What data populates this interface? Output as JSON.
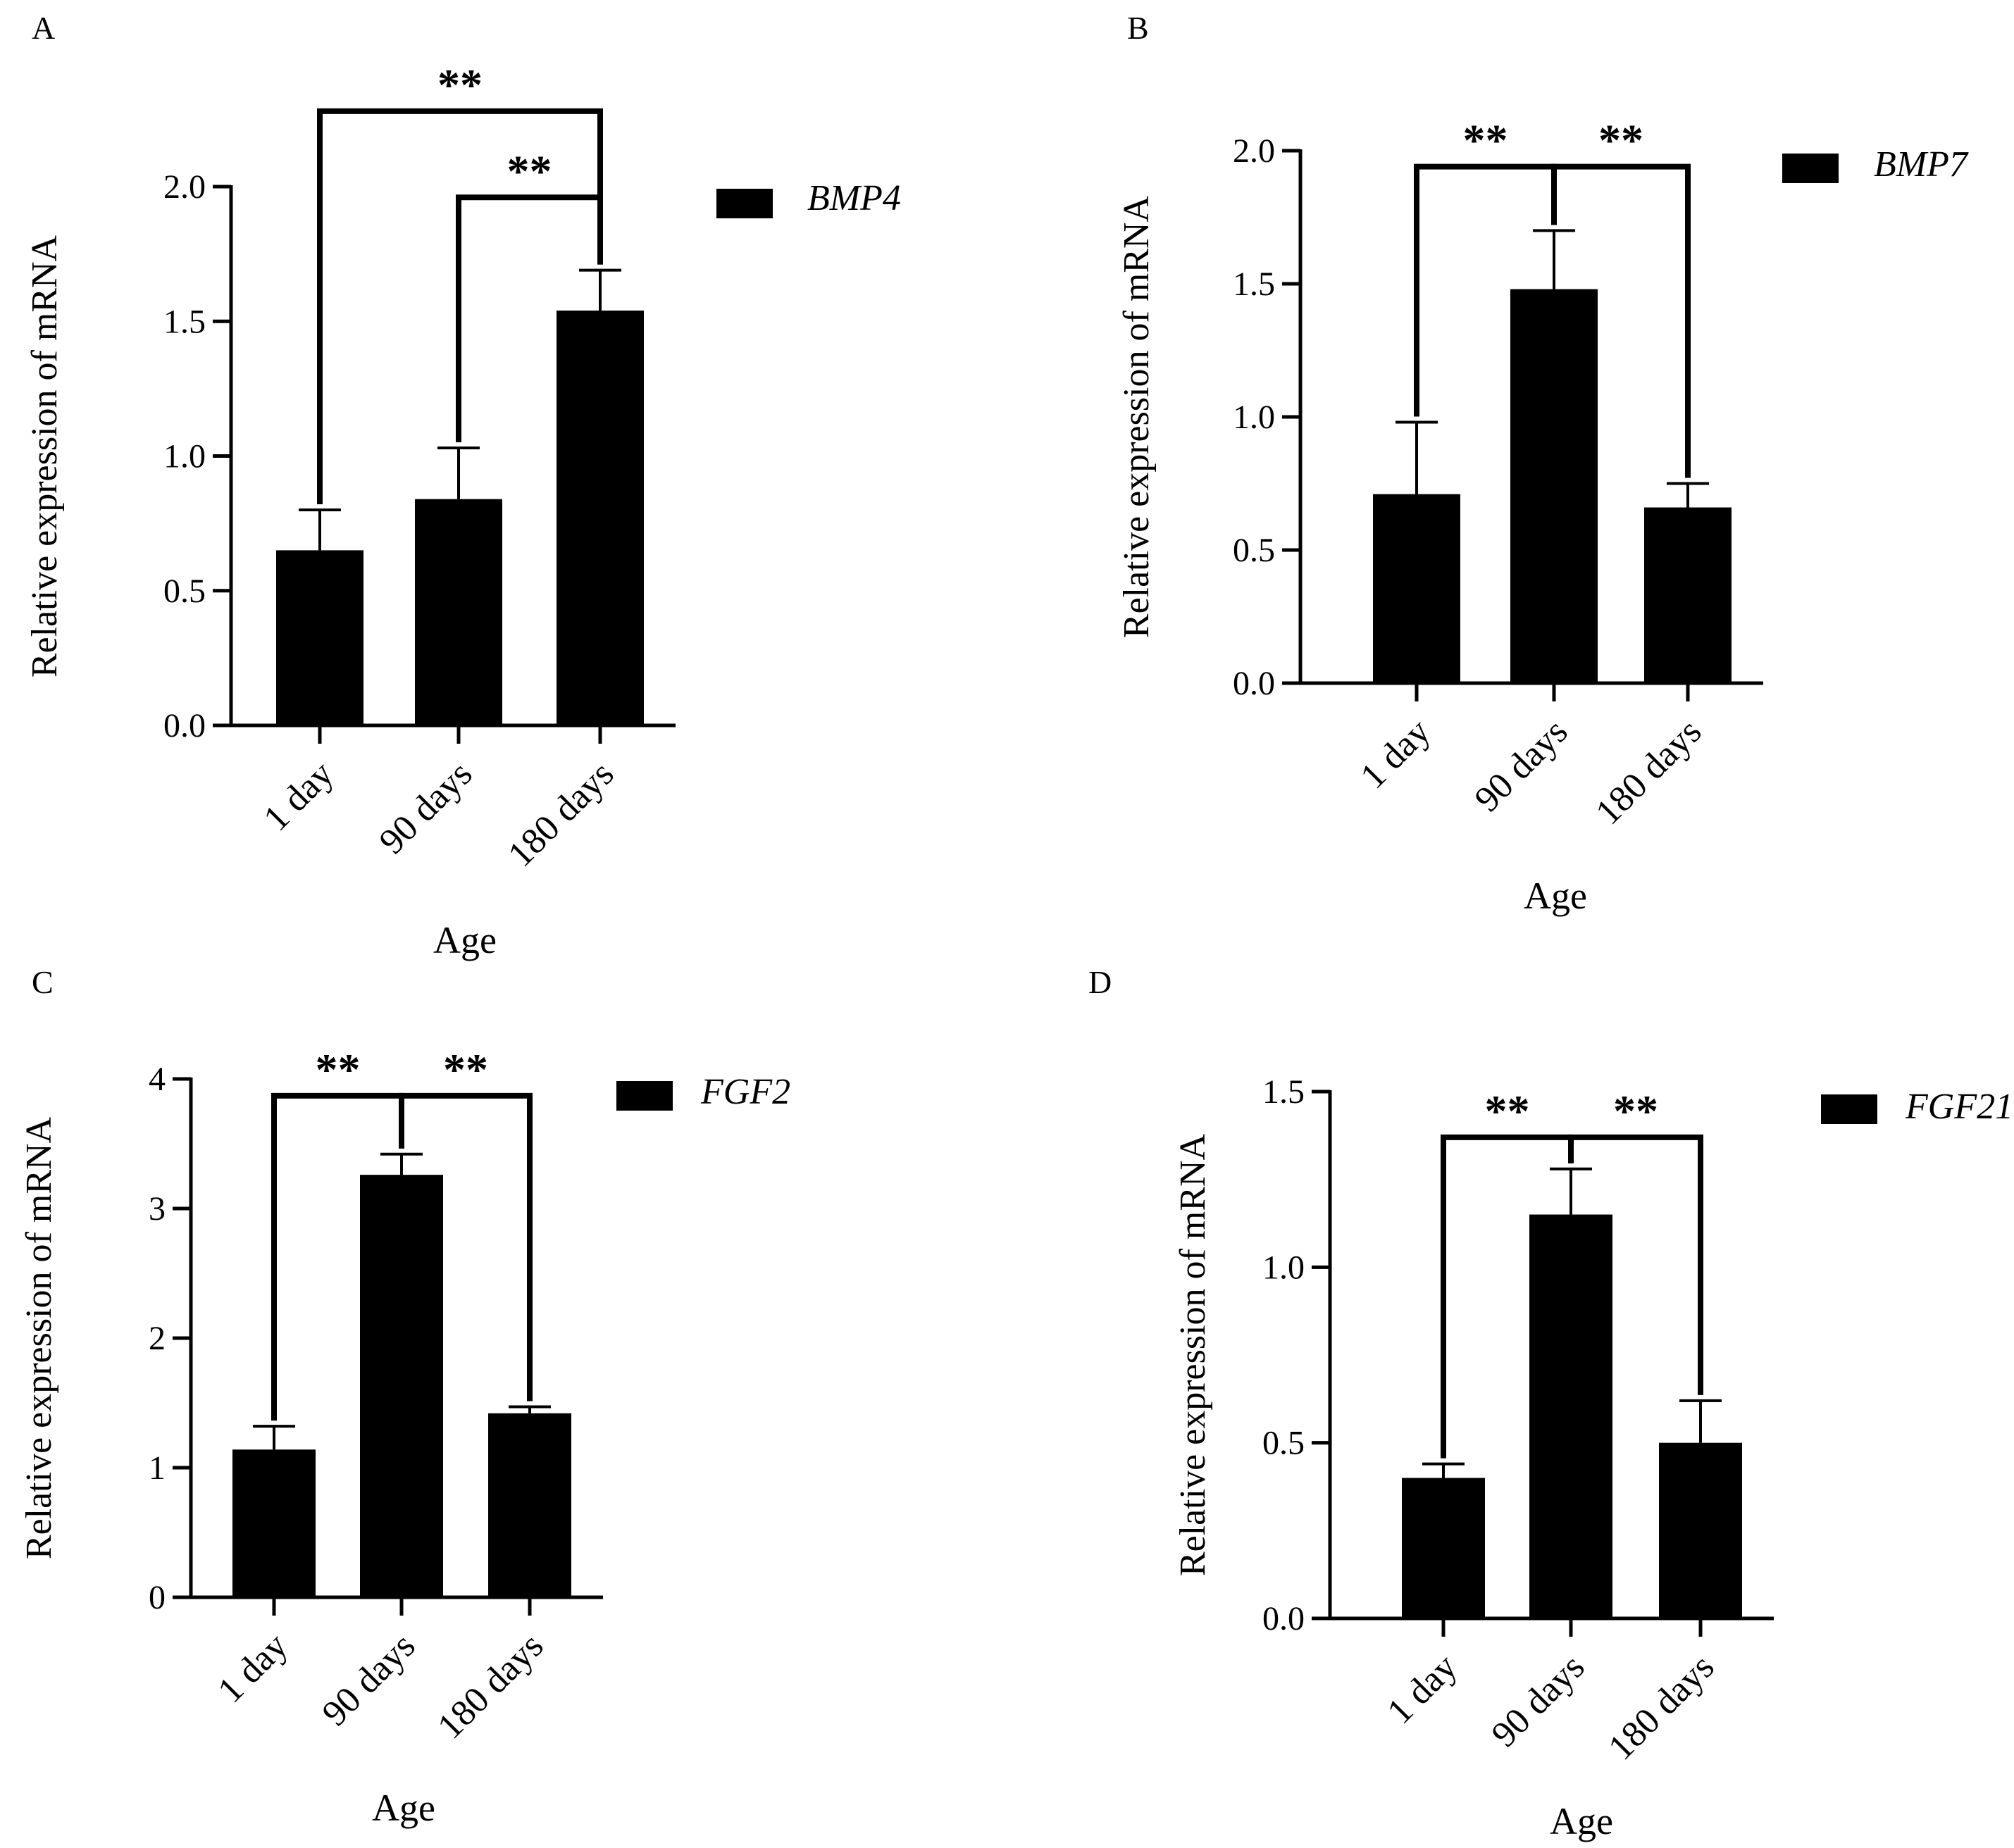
{
  "figure": {
    "panels": [
      {
        "id": "A",
        "panel_label": "A",
        "chart_data": {
          "type": "bar",
          "title": "",
          "xlabel": "Age",
          "ylabel": "Relative expression of mRNA",
          "categories": [
            "1 day",
            "90 days",
            "180 days"
          ],
          "series": [
            {
              "name": "BMP4",
              "values": [
                0.65,
                0.84,
                1.54
              ],
              "errors": [
                0.15,
                0.19,
                0.15
              ]
            }
          ],
          "ylim": [
            0,
            2.0
          ],
          "yticks": [
            0,
            0.5,
            1.0,
            1.5,
            2.0
          ],
          "ytick_labels": [
            "0.0",
            "0.5",
            "1.0",
            "1.5",
            "2.0"
          ],
          "legend": {
            "label": "BMP4",
            "placement": "top-right"
          },
          "significance": [
            {
              "from": 0,
              "to": 2,
              "label": "**",
              "level": 2.28
            },
            {
              "from": 1,
              "to": 2,
              "label": "**",
              "level": 1.96
            }
          ]
        }
      },
      {
        "id": "B",
        "panel_label": "B",
        "chart_data": {
          "type": "bar",
          "title": "",
          "xlabel": "Age",
          "ylabel": "Relative expression of mRNA",
          "categories": [
            "1 day",
            "90 days",
            "180 days"
          ],
          "series": [
            {
              "name": "BMP7",
              "values": [
                0.71,
                1.48,
                0.66
              ],
              "errors": [
                0.27,
                0.22,
                0.09
              ]
            }
          ],
          "ylim": [
            0,
            2.0
          ],
          "yticks": [
            0,
            0.5,
            1.0,
            1.5,
            2.0
          ],
          "ytick_labels": [
            "0.0",
            "0.5",
            "1.0",
            "1.5",
            "2.0"
          ],
          "legend": {
            "label": "BMP7",
            "placement": "top-right"
          },
          "significance": [
            {
              "from": 0,
              "to": 1,
              "label": "**",
              "level": 1.94
            },
            {
              "from": 1,
              "to": 2,
              "label": "**",
              "level": 1.94
            }
          ]
        }
      },
      {
        "id": "C",
        "panel_label": "C",
        "chart_data": {
          "type": "bar",
          "title": "",
          "xlabel": "Age",
          "ylabel": "Relative expression of mRNA",
          "categories": [
            "1 day",
            "90 days",
            "180 days"
          ],
          "series": [
            {
              "name": "FGF2",
              "values": [
                1.14,
                3.26,
                1.42
              ],
              "errors": [
                0.18,
                0.16,
                0.05
              ]
            }
          ],
          "ylim": [
            0,
            4
          ],
          "yticks": [
            0,
            1,
            2,
            3,
            4
          ],
          "ytick_labels": [
            "0",
            "1",
            "2",
            "3",
            "4"
          ],
          "legend": {
            "label": "FGF2",
            "placement": "top-right"
          },
          "significance": [
            {
              "from": 0,
              "to": 1,
              "label": "**",
              "level": 3.87
            },
            {
              "from": 1,
              "to": 2,
              "label": "**",
              "level": 3.87
            }
          ]
        }
      },
      {
        "id": "D",
        "panel_label": "D",
        "chart_data": {
          "type": "bar",
          "title": "",
          "xlabel": "Age",
          "ylabel": "Relative expression of mRNA",
          "categories": [
            "1 day",
            "90 days",
            "180 days"
          ],
          "series": [
            {
              "name": "FGF21",
              "values": [
                0.4,
                1.15,
                0.5
              ],
              "errors": [
                0.04,
                0.13,
                0.12
              ]
            }
          ],
          "ylim": [
            0,
            1.5
          ],
          "yticks": [
            0,
            0.5,
            1.0,
            1.5
          ],
          "ytick_labels": [
            "0.0",
            "0.5",
            "1.0",
            "1.5"
          ],
          "legend": {
            "label": "FGF21",
            "placement": "top-right"
          },
          "significance": [
            {
              "from": 0,
              "to": 1,
              "label": "**",
              "level": 1.37
            },
            {
              "from": 1,
              "to": 2,
              "label": "**",
              "level": 1.37
            }
          ]
        }
      }
    ]
  },
  "colors": {
    "bar": "#000000",
    "axis": "#000000",
    "background": "#ffffff"
  }
}
